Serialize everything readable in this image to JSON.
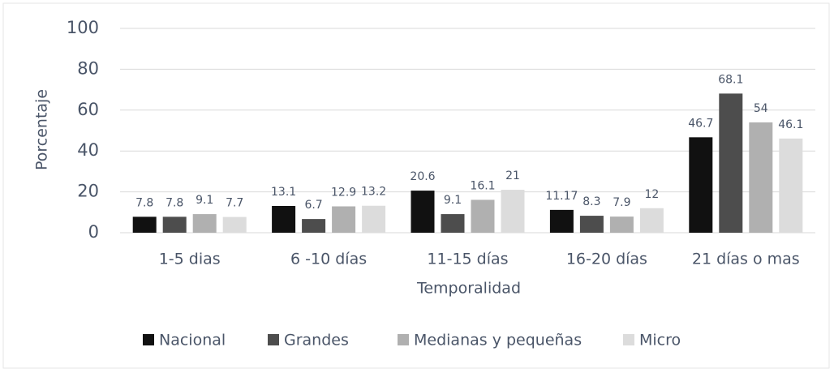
{
  "chart_data": {
    "type": "bar",
    "categories": [
      "1-5 dias",
      "6 -10 días",
      "11-15 días",
      "16-20 días",
      "21 días o mas"
    ],
    "series": [
      {
        "name": "Nacional",
        "color": "#111111",
        "values": [
          7.8,
          13.1,
          20.6,
          11.17,
          46.7
        ]
      },
      {
        "name": "Grandes",
        "color": "#4d4d4d",
        "values": [
          7.8,
          6.7,
          9.1,
          8.3,
          68.1
        ]
      },
      {
        "name": "Medianas y pequeñas",
        "color": "#b0b0b0",
        "values": [
          9.1,
          12.9,
          16.1,
          7.9,
          54
        ]
      },
      {
        "name": "Micro",
        "color": "#dcdcdc",
        "values": [
          7.7,
          13.2,
          21,
          12,
          46.1
        ]
      }
    ],
    "xlabel": "Temporalidad",
    "ylabel": "Porcentaje",
    "ylim": [
      0,
      100
    ],
    "yticks": [
      0,
      20,
      40,
      60,
      80,
      100
    ],
    "grid": true,
    "legend": "bottom"
  }
}
